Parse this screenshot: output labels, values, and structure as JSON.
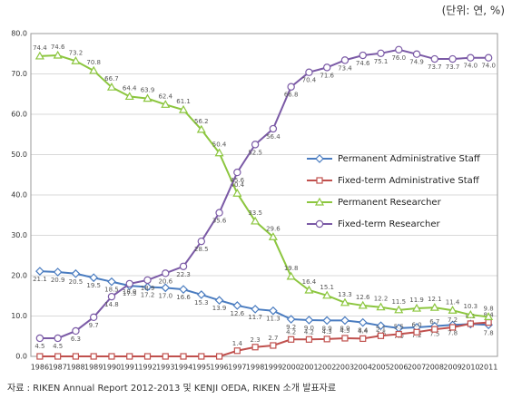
{
  "chart_data": {
    "type": "line",
    "unit_note": "(단위: 연, %)",
    "source": "자료 : RIKEN Annual Report 2012-2013 및 KENJI OEDA, RIKEN 소개 발표자료",
    "categories": [
      "1986",
      "1987",
      "1988",
      "1989",
      "1990",
      "1991",
      "1992",
      "1993",
      "1994",
      "1995",
      "1996",
      "1997",
      "1998",
      "1999",
      "2000",
      "2001",
      "2002",
      "2003",
      "2004",
      "2005",
      "2006",
      "2007",
      "2008",
      "2009",
      "2010",
      "2011"
    ],
    "ylim": [
      0,
      80
    ],
    "yticks": [
      {
        "value": 0,
        "label": "0.0"
      },
      {
        "value": 10,
        "label": "10.0"
      },
      {
        "value": 20,
        "label": "20.0"
      },
      {
        "value": 30,
        "label": "30.0"
      },
      {
        "value": 40,
        "label": "40.0"
      },
      {
        "value": 50,
        "label": "50.0"
      },
      {
        "value": 60,
        "label": "60.0"
      },
      {
        "value": 70,
        "label": "70.0"
      },
      {
        "value": 80,
        "label": "80.0"
      }
    ],
    "grid": true,
    "legend_position": "center-right",
    "series": [
      {
        "name": "Permanent Administrative Staff",
        "color": "#4a7cc0",
        "marker": "diamond",
        "values": [
          21.1,
          20.9,
          20.5,
          19.5,
          18.5,
          17.5,
          17.2,
          17.0,
          16.6,
          15.3,
          13.9,
          12.6,
          11.7,
          11.3,
          9.2,
          9.0,
          8.9,
          8.9,
          8.4,
          7.6,
          7.0,
          7.2,
          7.5,
          7.8,
          8.0,
          7.8
        ],
        "value_labels": [
          "21.1",
          "20.9",
          "20.5",
          "19.5",
          "18.5",
          "17.5",
          "17.2",
          "17.0",
          "16.6",
          "15.3",
          "13.9",
          "12.6",
          "11.7",
          "11.3",
          "9.2",
          "9.0",
          "8.9",
          "8.9",
          "8.4",
          "7.6",
          "7.0",
          "7.2",
          "7.5",
          "7.8",
          null,
          "7.8"
        ]
      },
      {
        "name": "Fixed-term Administrative Staff",
        "color": "#c0504d",
        "marker": "square",
        "values": [
          0,
          0,
          0,
          0,
          0,
          0,
          0,
          0,
          0,
          0,
          0,
          1.4,
          2.3,
          2.7,
          4.2,
          4.2,
          4.3,
          4.5,
          4.4,
          5.1,
          5.5,
          6.0,
          6.7,
          7.2,
          8.1,
          8.4
        ],
        "value_labels": [
          null,
          null,
          null,
          null,
          null,
          null,
          null,
          null,
          null,
          null,
          null,
          "1.4",
          "2.3",
          "2.7",
          "4.2",
          "4.2",
          "4.3",
          "4.5",
          "4.4",
          "5.1",
          "5.5",
          "6.0",
          "6.7",
          "7.2",
          "8.1",
          "8.4"
        ]
      },
      {
        "name": "Permanent Researcher",
        "color": "#8cc63f",
        "marker": "triangle",
        "values": [
          74.4,
          74.6,
          73.2,
          70.8,
          66.7,
          64.4,
          63.9,
          62.4,
          61.1,
          56.2,
          50.4,
          40.4,
          33.5,
          29.6,
          19.8,
          16.4,
          15.1,
          13.3,
          12.6,
          12.2,
          11.5,
          11.9,
          12.1,
          11.4,
          10.3,
          9.8
        ],
        "value_labels": [
          "74.4",
          "74.6",
          "73.2",
          "70.8",
          "66.7",
          "64.4",
          "63.9",
          "62.4",
          "61.1",
          "56.2",
          "50.4",
          "40.4",
          "33.5",
          "29.6",
          "19.8",
          "16.4",
          "15.1",
          "13.3",
          "12.6",
          "12.2",
          "11.5",
          "11.9",
          "12.1",
          "11.4",
          "10.3",
          "9.8"
        ]
      },
      {
        "name": "Fixed-term Researcher",
        "color": "#7b5aa6",
        "marker": "circle",
        "values": [
          4.5,
          4.5,
          6.3,
          9.7,
          14.8,
          18.0,
          18.9,
          20.6,
          22.3,
          28.5,
          35.6,
          45.6,
          52.5,
          56.4,
          66.8,
          70.4,
          71.6,
          73.4,
          74.6,
          75.1,
          76.0,
          74.9,
          73.7,
          73.7,
          74.0,
          74.0
        ],
        "value_labels": [
          "4.5",
          "4.5",
          "6.3",
          "9.7",
          "14.8",
          "18.0",
          "18.9",
          "20.6",
          "22.3",
          "28.5",
          "35.6",
          "45.6",
          "52.5",
          "56.4",
          "66.8",
          "70.4",
          "71.6",
          "73.4",
          "74.6",
          "75.1",
          "76.0",
          "74.9",
          "73.7",
          "73.7",
          "74.0",
          "74.0"
        ]
      }
    ]
  }
}
